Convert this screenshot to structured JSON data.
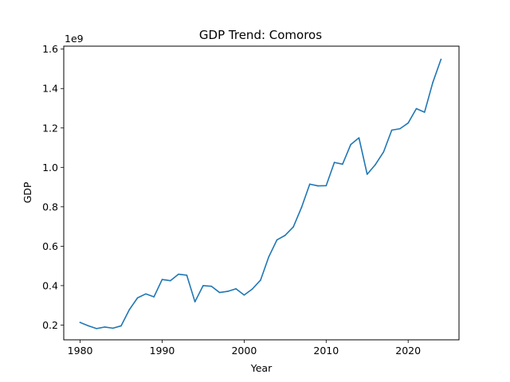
{
  "chart_data": {
    "type": "line",
    "title": "GDP Trend: Comoros",
    "xlabel": "Year",
    "ylabel": "GDP",
    "y_offset_label": "1e9",
    "grid": false,
    "legend": "none",
    "xlim": [
      1978,
      2026.2
    ],
    "ylim": [
      0.125,
      1.615
    ],
    "x_ticks": [
      1980,
      1990,
      2000,
      2010,
      2020
    ],
    "y_ticks": [
      0.2,
      0.4,
      0.6,
      0.8,
      1.0,
      1.2,
      1.4,
      1.6
    ],
    "y_tick_labels": [
      "0.2",
      "0.4",
      "0.6",
      "0.8",
      "1.0",
      "1.2",
      "1.4",
      "1.6"
    ],
    "line_color": "#1f77b4",
    "series": [
      {
        "x": [
          1980,
          1981,
          1982,
          1983,
          1984,
          1985,
          1986,
          1987,
          1988,
          1989,
          1990,
          1991,
          1992,
          1993,
          1994,
          1995,
          1996,
          1997,
          1998,
          1999,
          2000,
          2001,
          2002,
          2003,
          2004,
          2005,
          2006,
          2007,
          2008,
          2009,
          2010,
          2011,
          2012,
          2013,
          2014,
          2015,
          2016,
          2017,
          2018,
          2019,
          2020,
          2021,
          2022,
          2023,
          2024
        ],
        "values": [
          0.213,
          0.196,
          0.182,
          0.19,
          0.184,
          0.196,
          0.278,
          0.338,
          0.358,
          0.343,
          0.431,
          0.425,
          0.458,
          0.453,
          0.318,
          0.4,
          0.397,
          0.365,
          0.371,
          0.384,
          0.352,
          0.383,
          0.428,
          0.546,
          0.632,
          0.655,
          0.698,
          0.797,
          0.915,
          0.906,
          0.907,
          1.025,
          1.016,
          1.116,
          1.15,
          0.965,
          1.014,
          1.078,
          1.189,
          1.196,
          1.225,
          1.298,
          1.28,
          1.43,
          1.548
        ]
      }
    ]
  }
}
